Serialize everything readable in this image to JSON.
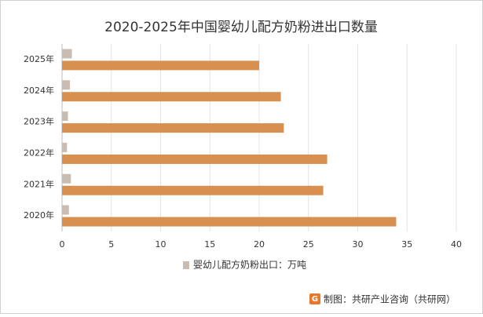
{
  "chart_data": {
    "type": "hbar",
    "title": "2020-2025年中国婴幼儿配方奶粉进出口数量",
    "categories": [
      "2025年",
      "2024年",
      "2023年",
      "2022年",
      "2021年",
      "2020年"
    ],
    "series": [
      {
        "name": "婴幼儿配方奶粉出口：万吨",
        "color": "#c9bdb3",
        "values": [
          1.0,
          0.8,
          0.6,
          0.5,
          0.9,
          0.7
        ]
      },
      {
        "color": "#d7904f",
        "values": [
          20.0,
          22.2,
          22.5,
          26.9,
          26.5,
          33.9
        ]
      }
    ],
    "xlim": [
      0,
      40
    ],
    "xticks": [
      0,
      5,
      10,
      15,
      20,
      25,
      30,
      35,
      40
    ],
    "grid": true,
    "legend": "bottom",
    "source": "制图：共研产业咨询（共研网）"
  }
}
